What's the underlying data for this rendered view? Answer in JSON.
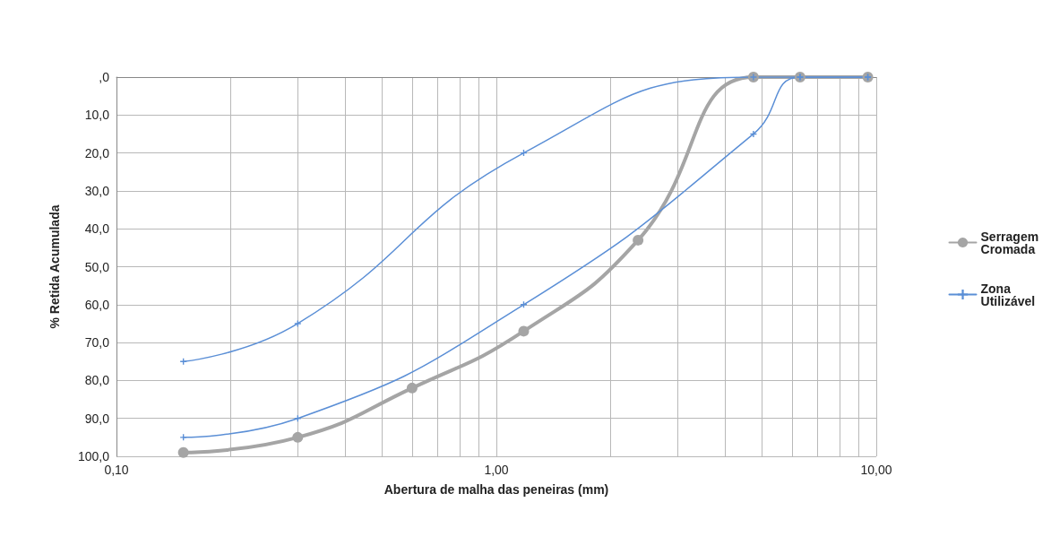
{
  "chart_data": {
    "type": "line",
    "xlabel": "Abertura de malha das peneiras (mm)",
    "ylabel": "% Retida Acumulada",
    "log": "x",
    "grid": true,
    "legend": "right",
    "xlim": [
      0.1,
      10
    ],
    "xticks": [
      {
        "value": 0.1,
        "label": "0,10"
      },
      {
        "value": 0.2,
        "label": null
      },
      {
        "value": 0.3,
        "label": null
      },
      {
        "value": 0.4,
        "label": null
      },
      {
        "value": 0.5,
        "label": null
      },
      {
        "value": 0.6,
        "label": null
      },
      {
        "value": 0.7,
        "label": null
      },
      {
        "value": 0.8,
        "label": null
      },
      {
        "value": 0.9,
        "label": null
      },
      {
        "value": 1,
        "label": "1,00"
      },
      {
        "value": 2,
        "label": null
      },
      {
        "value": 3,
        "label": null
      },
      {
        "value": 4,
        "label": null
      },
      {
        "value": 5,
        "label": null
      },
      {
        "value": 6,
        "label": null
      },
      {
        "value": 7,
        "label": null
      },
      {
        "value": 8,
        "label": null
      },
      {
        "value": 9,
        "label": null
      },
      {
        "value": 10,
        "label": "10,00"
      }
    ],
    "ylim": [
      100,
      0
    ],
    "yticks": [
      {
        "value": 0,
        "label": ",0"
      },
      {
        "value": 10,
        "label": "10,0"
      },
      {
        "value": 20,
        "label": "20,0"
      },
      {
        "value": 30,
        "label": "30,0"
      },
      {
        "value": 40,
        "label": "40,0"
      },
      {
        "value": 50,
        "label": "50,0"
      },
      {
        "value": 60,
        "label": "60,0"
      },
      {
        "value": 70,
        "label": "70,0"
      },
      {
        "value": 80,
        "label": "80,0"
      },
      {
        "value": 90,
        "label": "90,0"
      },
      {
        "value": 100,
        "label": "100,0"
      }
    ],
    "series": [
      {
        "name": "Serragem Cromada",
        "color": "#a5a5a5",
        "marker": "circle",
        "x": [
          0.15,
          0.3,
          0.6,
          1.18,
          2.36,
          4.75,
          6.3,
          9.5
        ],
        "values": [
          99,
          95,
          82,
          67,
          43,
          0,
          0,
          0
        ]
      },
      {
        "name": "Zona Utilizável",
        "color": "#5b8fd6",
        "marker": "cross",
        "x": [
          0.15,
          0.3,
          1.18,
          4.75,
          6.3,
          9.5
        ],
        "values": [
          95,
          90,
          60,
          15,
          0,
          0
        ]
      },
      {
        "color": "#5b8fd6",
        "marker": "cross",
        "x": [
          0.15,
          0.3,
          1.18,
          4.75,
          6.3,
          9.5
        ],
        "values": [
          75,
          65,
          20,
          0,
          0,
          0
        ]
      }
    ]
  }
}
